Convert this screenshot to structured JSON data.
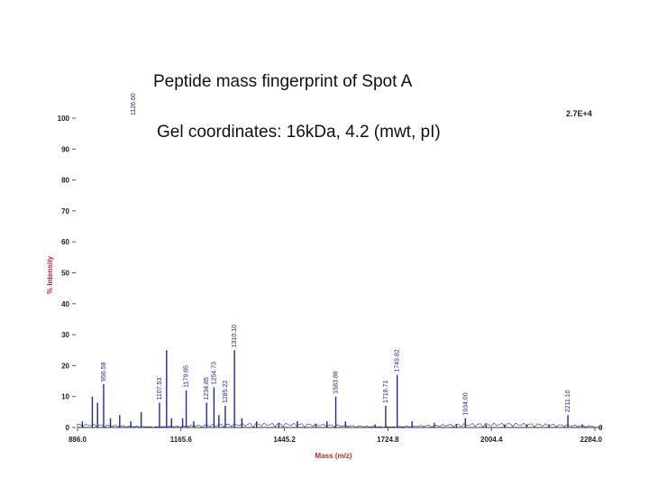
{
  "chart_data": {
    "type": "line",
    "title": "Peptide mass fingerprint of Spot A",
    "subtitle": "Gel coordinates: 16kDa, 4.2 (mwt, pI)",
    "xlabel": "Mass (m/z)",
    "ylabel": "% Intensity",
    "max_intensity_label": "2.7E+4",
    "xlim": [
      886.0,
      2284.0
    ],
    "ylim": [
      0,
      100
    ],
    "x_ticks": [
      "886.0",
      "1165.6",
      "1445.2",
      "1724.8",
      "2004.4",
      "2284.0"
    ],
    "y_ticks": [
      "0",
      "10",
      "20",
      "30",
      "40",
      "50",
      "60",
      "70",
      "80",
      "90",
      "100"
    ],
    "top_label": "1126.60",
    "series": [
      {
        "name": "spectrum",
        "peaks": [
          {
            "mz": 899,
            "intensity": 2
          },
          {
            "mz": 926,
            "intensity": 10
          },
          {
            "mz": 940,
            "intensity": 8
          },
          {
            "mz": 956.58,
            "intensity": 14,
            "label": "956.58"
          },
          {
            "mz": 975,
            "intensity": 3
          },
          {
            "mz": 1000,
            "intensity": 4
          },
          {
            "mz": 1030,
            "intensity": 2
          },
          {
            "mz": 1058,
            "intensity": 5
          },
          {
            "mz": 1107.53,
            "intensity": 8,
            "label": "1107.53"
          },
          {
            "mz": 1126.6,
            "intensity": 25
          },
          {
            "mz": 1140,
            "intensity": 3
          },
          {
            "mz": 1170,
            "intensity": 3
          },
          {
            "mz": 1179.65,
            "intensity": 12,
            "label": "1179.65"
          },
          {
            "mz": 1200,
            "intensity": 2
          },
          {
            "mz": 1234.85,
            "intensity": 8,
            "label": "1234.85"
          },
          {
            "mz": 1254.73,
            "intensity": 13,
            "label": "1254.73"
          },
          {
            "mz": 1268,
            "intensity": 4
          },
          {
            "mz": 1285.22,
            "intensity": 7,
            "label": "1285.22"
          },
          {
            "mz": 1310.1,
            "intensity": 25,
            "label": "1310.10"
          },
          {
            "mz": 1330,
            "intensity": 3
          },
          {
            "mz": 1370,
            "intensity": 2
          },
          {
            "mz": 1430,
            "intensity": 1.5
          },
          {
            "mz": 1480,
            "intensity": 2
          },
          {
            "mz": 1530,
            "intensity": 1
          },
          {
            "mz": 1560,
            "intensity": 2
          },
          {
            "mz": 1583.86,
            "intensity": 10,
            "label": "1583.86"
          },
          {
            "mz": 1610,
            "intensity": 2
          },
          {
            "mz": 1690,
            "intensity": 1
          },
          {
            "mz": 1718.71,
            "intensity": 7,
            "label": "1718.71"
          },
          {
            "mz": 1749.82,
            "intensity": 17,
            "label": "1749.82"
          },
          {
            "mz": 1790,
            "intensity": 2
          },
          {
            "mz": 1850,
            "intensity": 1.5
          },
          {
            "mz": 1910,
            "intensity": 1
          },
          {
            "mz": 1934.0,
            "intensity": 3,
            "label": "1934.00"
          },
          {
            "mz": 1990,
            "intensity": 1
          },
          {
            "mz": 2040,
            "intensity": 1
          },
          {
            "mz": 2100,
            "intensity": 1
          },
          {
            "mz": 2160,
            "intensity": 1
          },
          {
            "mz": 2211.1,
            "intensity": 4,
            "label": "2211.10"
          },
          {
            "mz": 2250,
            "intensity": 1
          }
        ]
      }
    ]
  }
}
